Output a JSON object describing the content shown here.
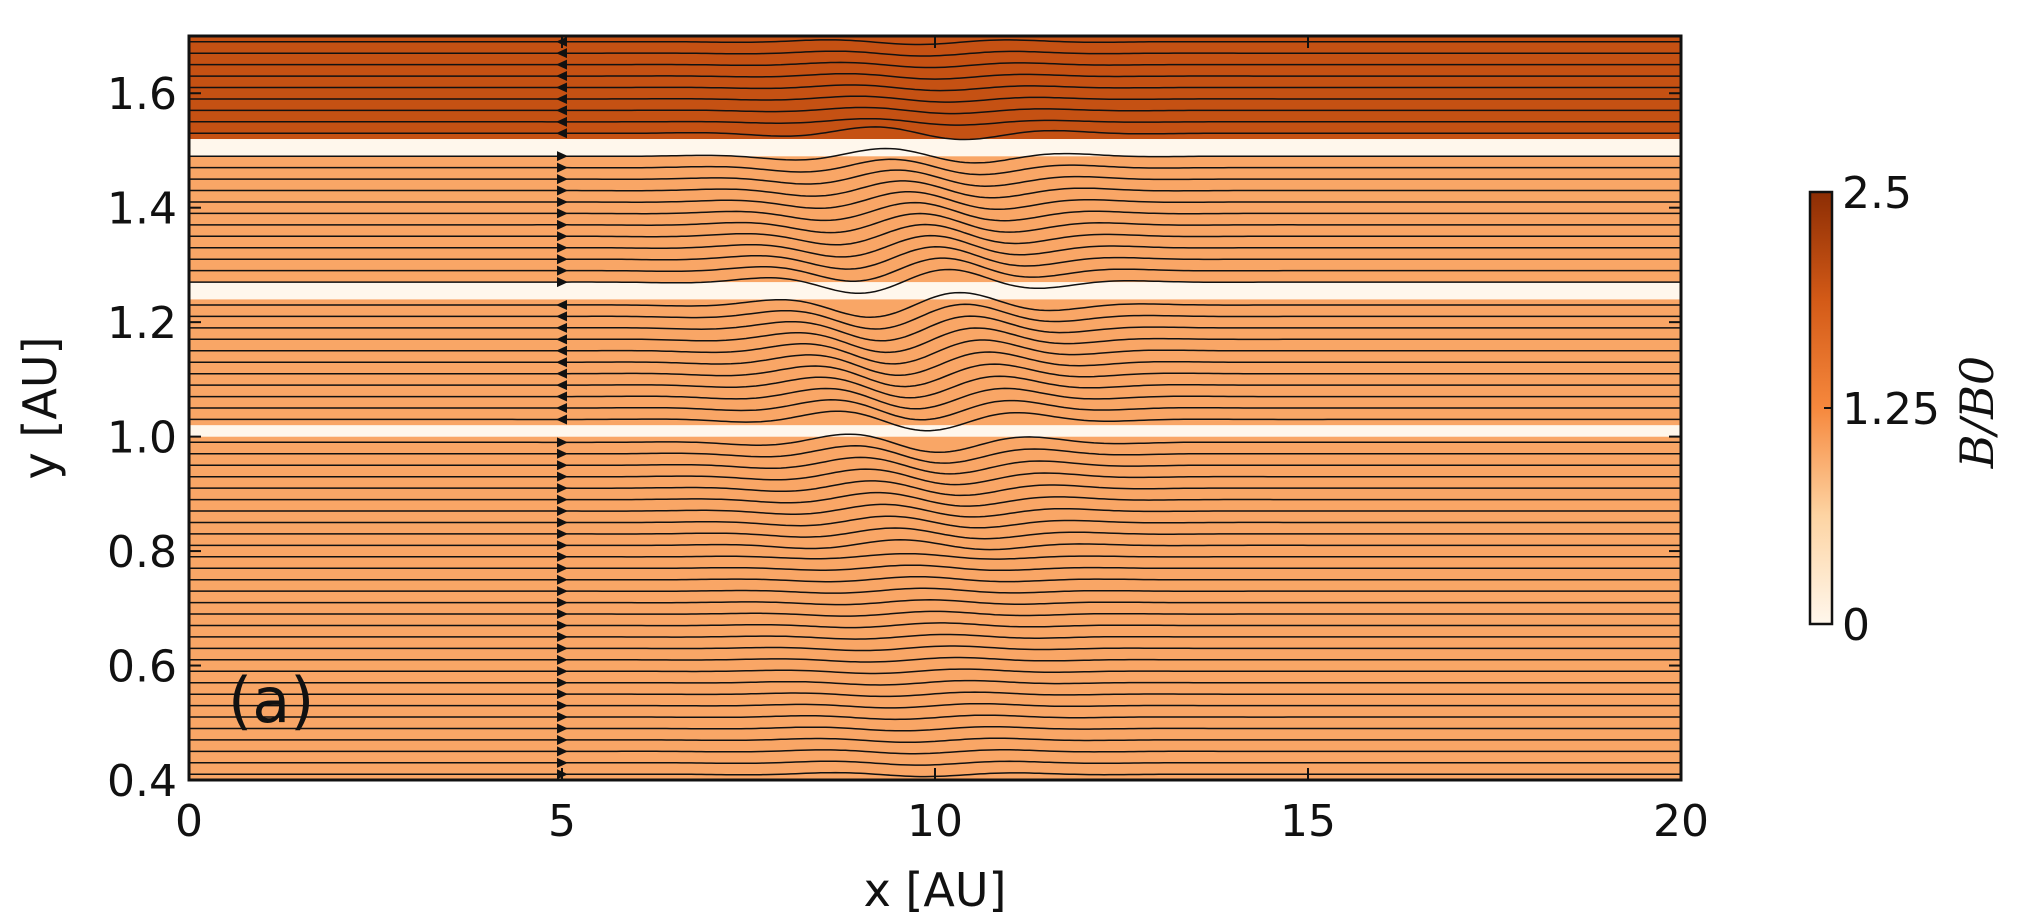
{
  "chart_data": {
    "type": "heatmap",
    "panel_label": "(a)",
    "xlabel": "x [AU]",
    "ylabel": "y [AU]",
    "xlim": [
      0,
      20
    ],
    "ylim": [
      0.4,
      1.7
    ],
    "x_ticks": [
      0,
      5,
      10,
      15,
      20
    ],
    "x_tick_labels": [
      "0",
      "5",
      "10",
      "15",
      "20"
    ],
    "y_ticks": [
      0.4,
      0.6,
      0.8,
      1.0,
      1.2,
      1.4,
      1.6
    ],
    "y_tick_labels": [
      "0.4",
      "0.6",
      "0.8",
      "1.0",
      "1.2",
      "1.4",
      "1.6"
    ],
    "colorbar": {
      "label": "B/B0",
      "range": [
        0,
        2.5
      ],
      "ticks": [
        0,
        1.25,
        2.5
      ],
      "tick_labels": [
        "0",
        "1.25",
        "2.5"
      ],
      "colors": [
        "#fff7ec",
        "#fdd4a3",
        "#f6883d",
        "#d35a17",
        "#8c2d04"
      ]
    },
    "field_bands": [
      {
        "y_min": 0.4,
        "y_max": 1.0,
        "B": 1.0
      },
      {
        "y_min": 1.0,
        "y_max": 1.02,
        "B": 0.0
      },
      {
        "y_min": 1.02,
        "y_max": 1.24,
        "B": 1.0
      },
      {
        "y_min": 1.24,
        "y_max": 1.27,
        "B": 0.0
      },
      {
        "y_min": 1.27,
        "y_max": 1.49,
        "B": 1.0
      },
      {
        "y_min": 1.49,
        "y_max": 1.52,
        "B": 0.0
      },
      {
        "y_min": 1.52,
        "y_max": 1.7,
        "B": 2.0
      }
    ],
    "field_lines": {
      "direction_bands": [
        {
          "y_min": 0.4,
          "y_max": 1.01,
          "direction": "right"
        },
        {
          "y_min": 1.01,
          "y_max": 1.255,
          "direction": "left"
        },
        {
          "y_min": 1.255,
          "y_max": 1.505,
          "direction": "right"
        },
        {
          "y_min": 1.505,
          "y_max": 1.7,
          "direction": "left"
        }
      ],
      "arrow_x": 5.0,
      "perturbation_x_range": [
        6.5,
        13.0
      ]
    }
  }
}
